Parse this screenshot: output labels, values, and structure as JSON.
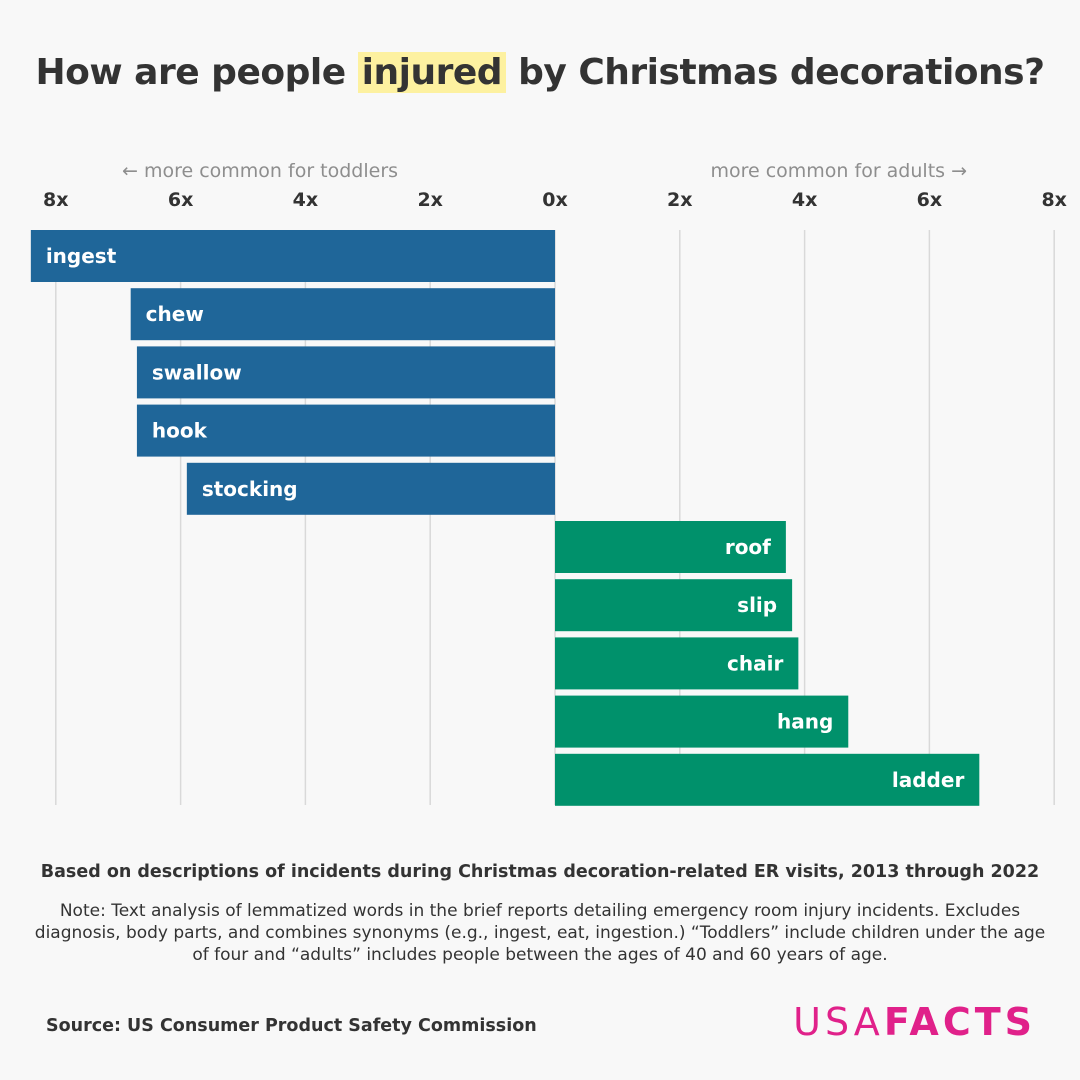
{
  "title": {
    "before": "How are people",
    "highlight": "injured",
    "after": "by Christmas decorations?"
  },
  "chart_data": {
    "type": "bar",
    "orientation": "horizontal-diverging",
    "axis_note_left": "more common for toddlers",
    "axis_note_right": "more common for adults",
    "arrow_left": "←",
    "arrow_right": "→",
    "ticks": [
      "8x",
      "6x",
      "4x",
      "2x",
      "0x",
      "2x",
      "4x",
      "6x",
      "8x"
    ],
    "xlim": [
      -8,
      8
    ],
    "categories": [
      "ingest",
      "chew",
      "swallow",
      "hook",
      "stocking",
      "roof",
      "slip",
      "chair",
      "hang",
      "ladder"
    ],
    "series": [
      {
        "name": "more common for toddlers",
        "color": "#1f6699",
        "values": [
          8.4,
          6.8,
          6.7,
          6.7,
          5.9,
          null,
          null,
          null,
          null,
          null
        ]
      },
      {
        "name": "more common for adults",
        "color": "#00916b",
        "values": [
          null,
          null,
          null,
          null,
          null,
          3.7,
          3.8,
          3.9,
          4.7,
          6.8
        ]
      }
    ]
  },
  "footer": {
    "subtitle": "Based on descriptions of incidents during Christmas decoration-related ER visits, 2013 through 2022",
    "note": "Note: Text analysis of lemmatized words in the brief reports detailing emergency room injury incidents. Excludes diagnosis, body parts, and combines synonyms (e.g., ingest, eat, ingestion.) “Toddlers” include children under the age of four and “adults” includes people between the ages of 40 and 60 years of age.",
    "source": "Source: US Consumer Product Safety Commission"
  },
  "logo": {
    "part1": "USA",
    "part2": "FACTS",
    "color": "#e0218a"
  }
}
